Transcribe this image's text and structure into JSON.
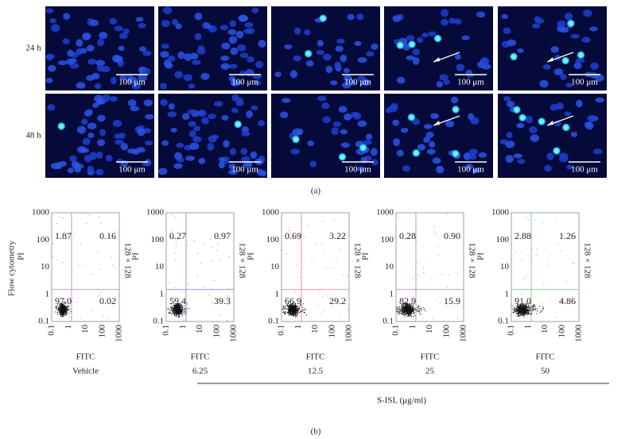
{
  "panel_a": {
    "rows": [
      {
        "label": "24 h"
      },
      {
        "label": "48 h"
      }
    ],
    "scale_bar": "100 μm",
    "caption": "(a)"
  },
  "panel_b": {
    "y_axis_label": "PI",
    "x_axis_label": "FITC",
    "side_label": "128 × 128",
    "row_label": "Flow cytometry",
    "ticks": [
      "1000",
      "100",
      "10",
      "1",
      "0.1"
    ],
    "plots": [
      {
        "condition": "Vehicle",
        "upper_left": "1.87",
        "upper_right": "0.16",
        "lower_left": "97.0",
        "lower_right": "0.02"
      },
      {
        "condition": "6.25",
        "upper_left": "0.27",
        "upper_right": "0.97",
        "lower_left": "59.4",
        "lower_right": "39.3"
      },
      {
        "condition": "12.5",
        "upper_left": "0.69",
        "upper_right": "3.22",
        "lower_left": "66.9",
        "lower_right": "29.2"
      },
      {
        "condition": "25",
        "upper_left": "0.28",
        "upper_right": "0.90",
        "lower_left": "82.9",
        "lower_right": "15.9"
      },
      {
        "condition": "50",
        "upper_left": "2.88",
        "upper_right": "1.26",
        "lower_left": "91.0",
        "lower_right": "4.86"
      }
    ],
    "group_label": "S-ISL (μg/ml)",
    "caption": "(b)"
  }
}
